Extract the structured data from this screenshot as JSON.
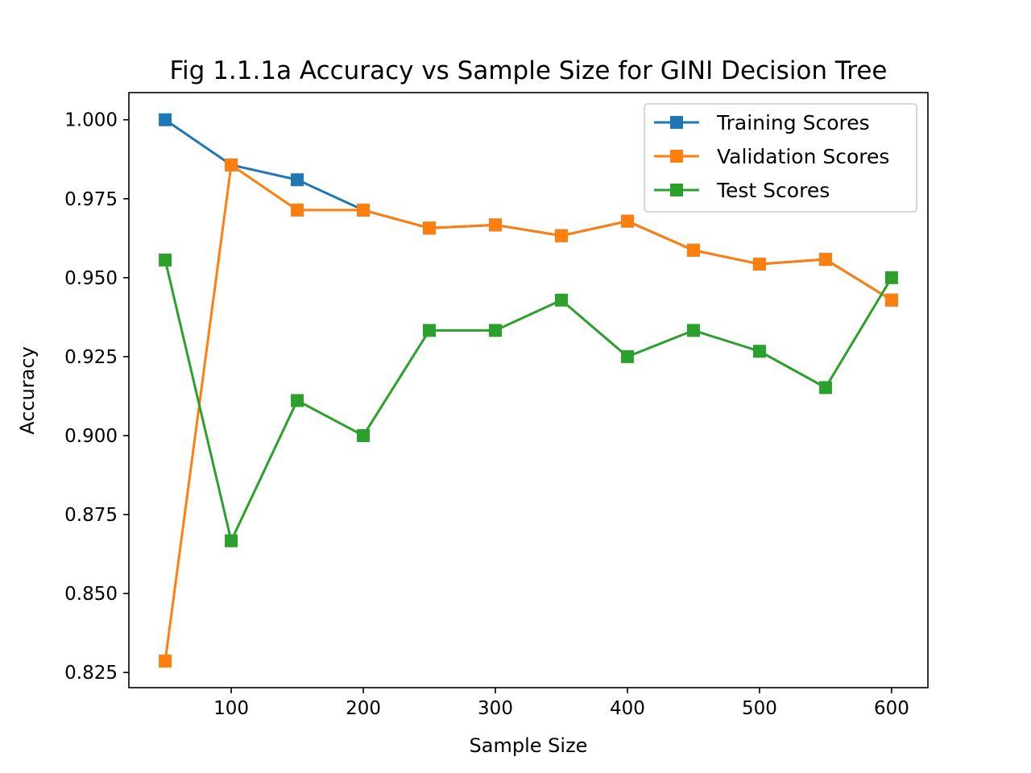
{
  "chart_data": {
    "type": "line",
    "title": "Fig 1.1.1a Accuracy vs Sample Size for GINI Decision Tree",
    "xlabel": "Sample Size",
    "ylabel": "Accuracy",
    "xlim": [
      22.5,
      627.5
    ],
    "ylim": [
      0.8202,
      1.0086
    ],
    "xticks": [
      100,
      200,
      300,
      400,
      500,
      600
    ],
    "xtick_labels": [
      "100",
      "200",
      "300",
      "400",
      "500",
      "600"
    ],
    "yticks": [
      0.825,
      0.85,
      0.875,
      0.9,
      0.925,
      0.95,
      0.975,
      1.0
    ],
    "ytick_labels": [
      "0.825",
      "0.850",
      "0.875",
      "0.900",
      "0.925",
      "0.950",
      "0.975",
      "1.000"
    ],
    "grid": false,
    "legend": "top-right",
    "x": [
      50,
      100,
      150,
      200,
      250,
      300,
      350,
      400,
      450,
      500,
      550,
      600
    ],
    "series": [
      {
        "name": "Training Scores",
        "color": "#1f77b4",
        "marker": "square",
        "values": [
          1.0,
          0.9857,
          0.981,
          0.9714,
          0.9657,
          0.9667,
          0.9633,
          0.9679,
          0.9587,
          0.9543,
          0.9558,
          0.9429
        ]
      },
      {
        "name": "Validation Scores",
        "color": "#ff7f0e",
        "marker": "square",
        "values": [
          0.8286,
          0.9857,
          0.9714,
          0.9714,
          0.9657,
          0.9667,
          0.9633,
          0.9679,
          0.9587,
          0.9543,
          0.9558,
          0.9429
        ]
      },
      {
        "name": "Test Scores",
        "color": "#2ca02c",
        "marker": "square",
        "values": [
          0.9556,
          0.8667,
          0.9111,
          0.9,
          0.9333,
          0.9333,
          0.9429,
          0.925,
          0.9333,
          0.9267,
          0.9152,
          0.95
        ]
      }
    ]
  }
}
